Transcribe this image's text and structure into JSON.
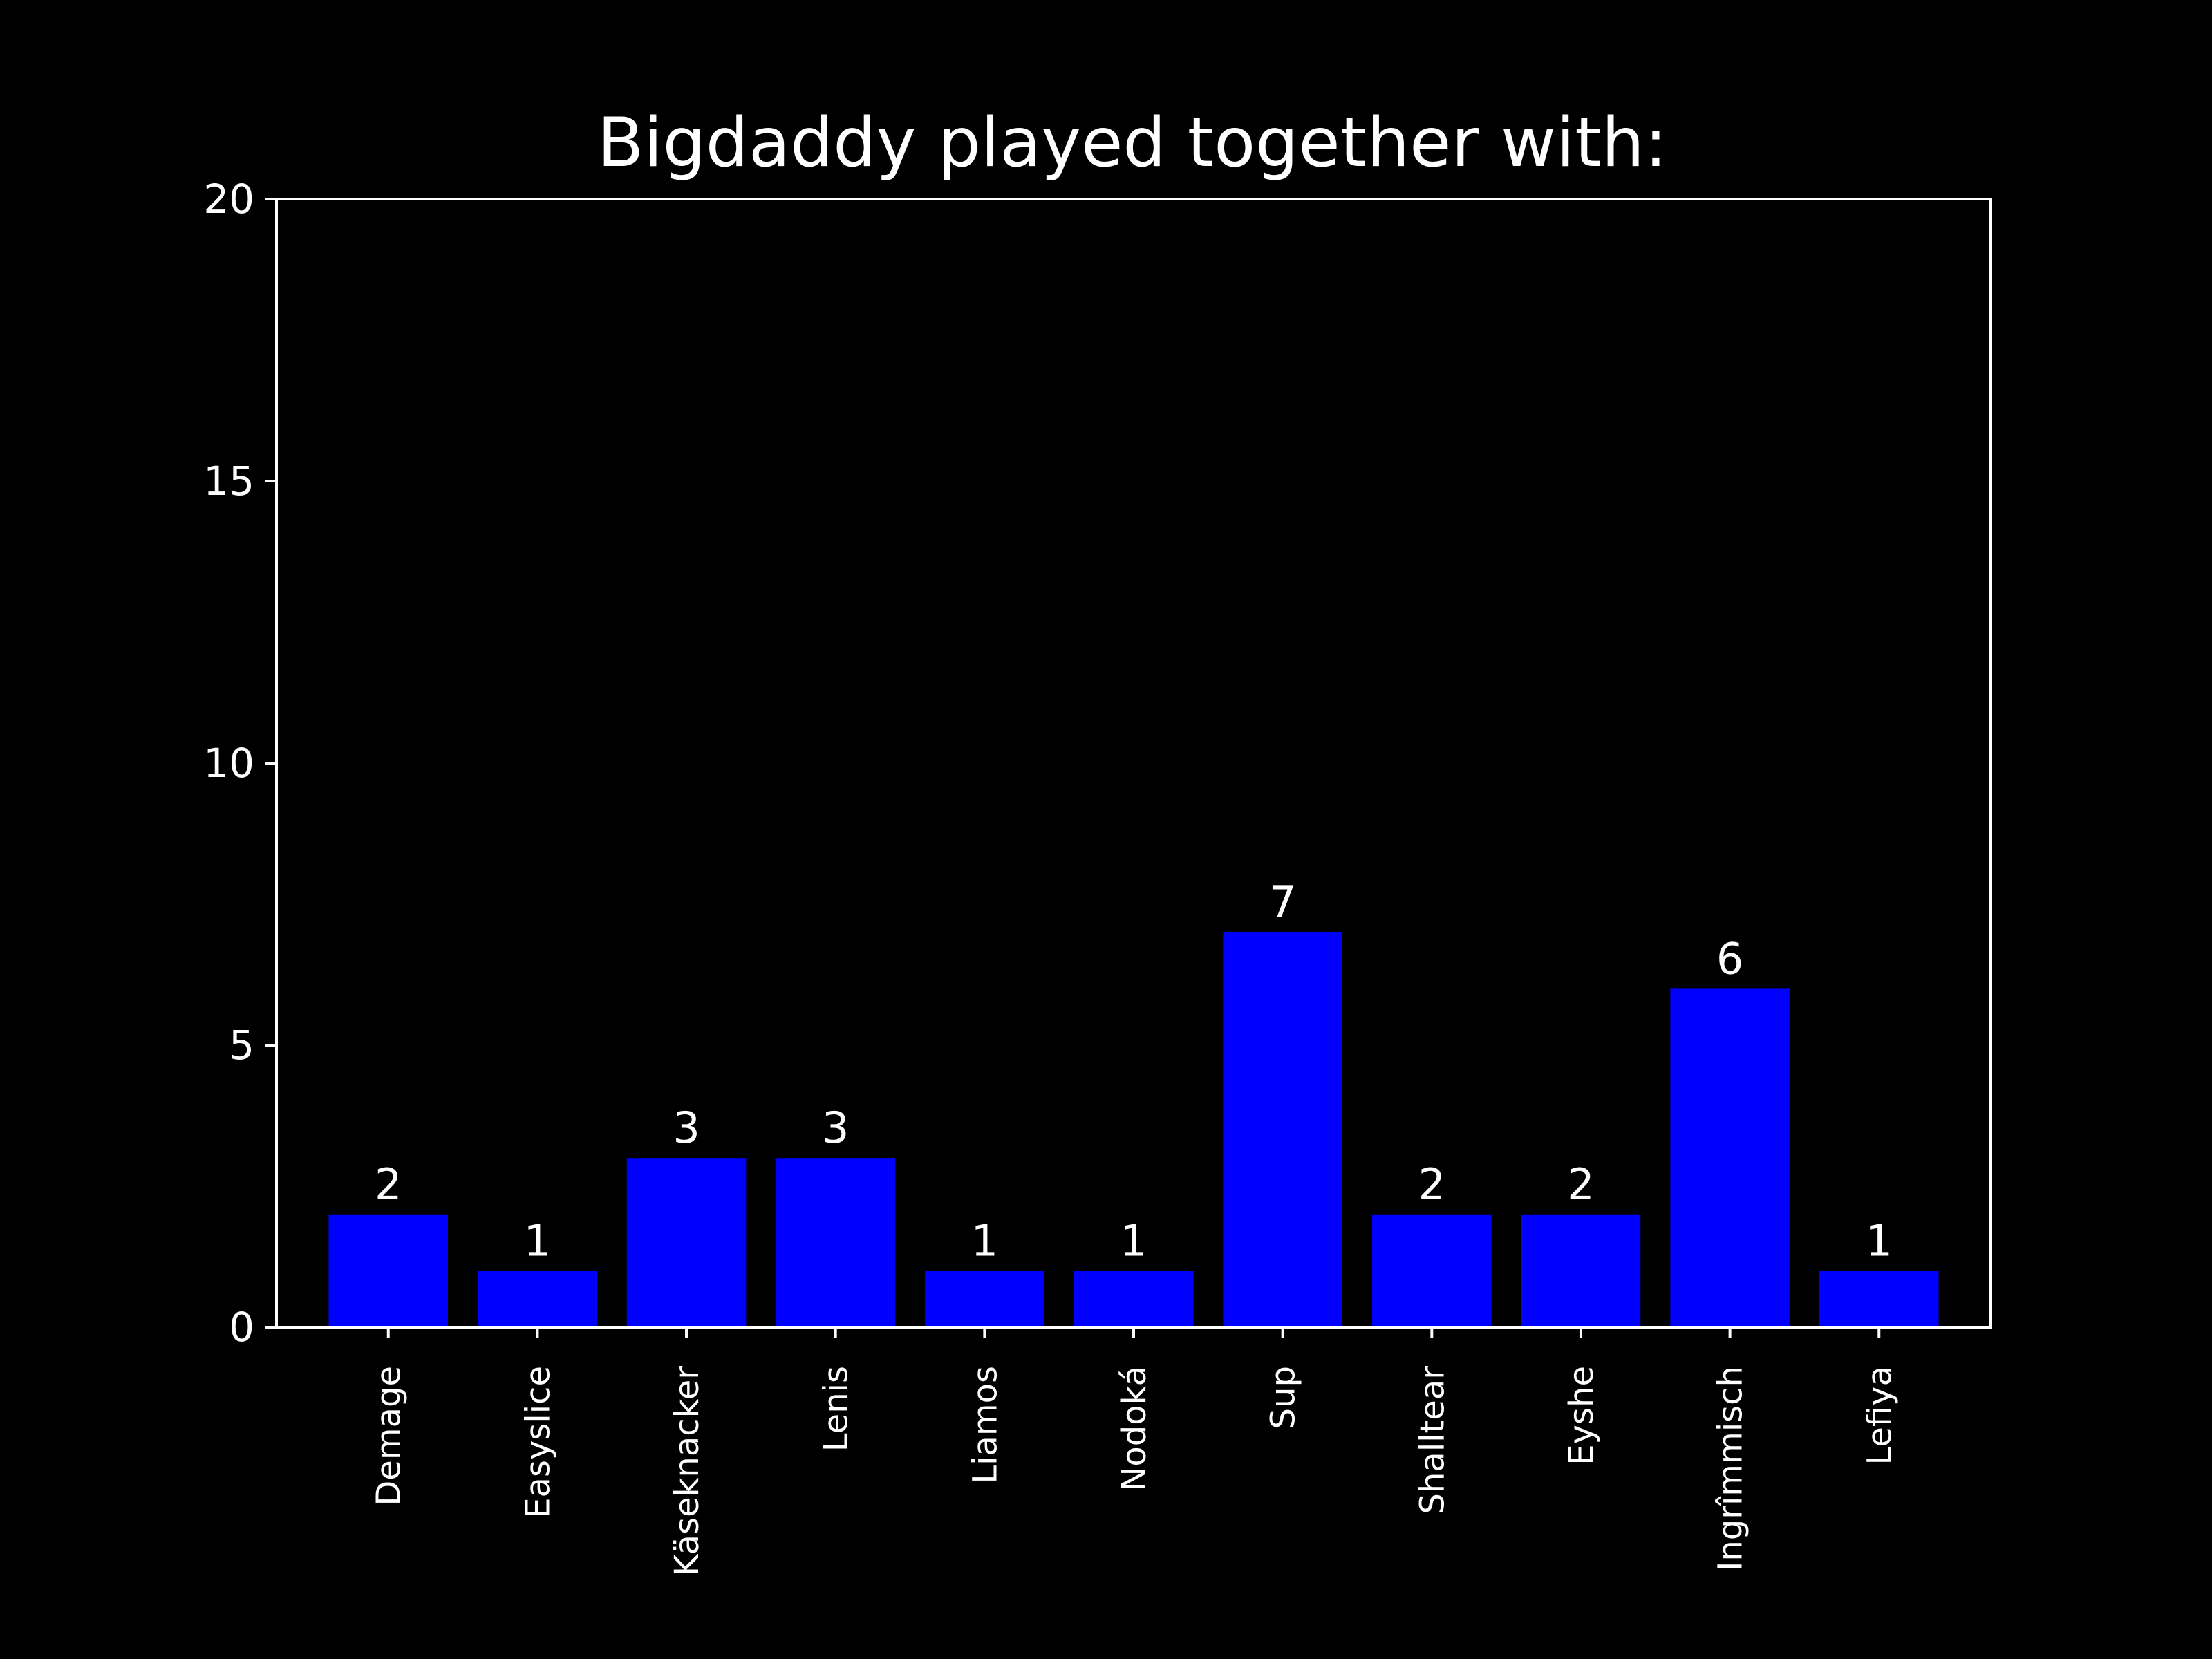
{
  "chart_data": {
    "type": "bar",
    "title": "Bigdaddy played together with:",
    "xlabel": "",
    "ylabel": "",
    "categories": [
      "Demage",
      "Easyslice",
      "Käseknacker",
      "Lenis",
      "Liamos",
      "Nodoká",
      "Sup",
      "Shalltear",
      "Eyshe",
      "Ingrîmmisch",
      "Lefiya"
    ],
    "values": [
      2,
      1,
      3,
      3,
      1,
      1,
      7,
      2,
      2,
      6,
      1
    ],
    "value_labels": [
      "2",
      "1",
      "3",
      "3",
      "1",
      "1",
      "7",
      "2",
      "2",
      "6",
      "1"
    ],
    "ylim": [
      0,
      20
    ],
    "yticks": [
      0,
      5,
      10,
      15,
      20
    ],
    "ytick_labels": [
      "0",
      "5",
      "10",
      "15",
      "20"
    ],
    "grid": false,
    "legend": "none",
    "colors": {
      "background": "#000000",
      "bar": "#0000ff",
      "axis": "#ffffff",
      "text": "#ffffff"
    }
  }
}
